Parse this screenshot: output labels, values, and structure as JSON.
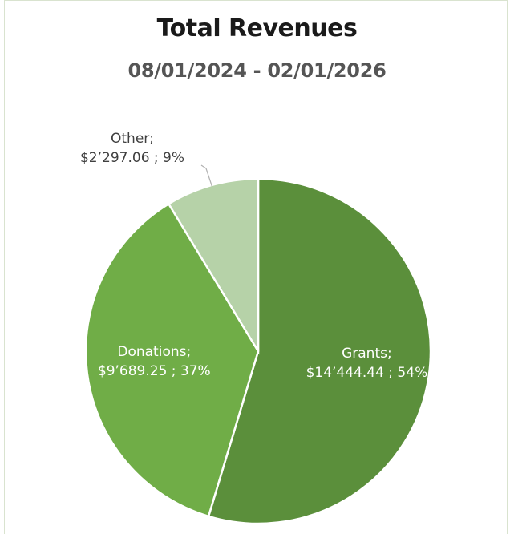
{
  "chart_data": {
    "type": "pie",
    "title": "Total Revenues",
    "subtitle": "08/01/2024 - 02/01/2026",
    "slices": [
      {
        "name": "Grants",
        "value": 14444.44,
        "value_label": "$14’444.44",
        "percent_label": "54%",
        "color": "#5b8f3b"
      },
      {
        "name": "Donations",
        "value": 9689.25,
        "value_label": "$9’689.25",
        "percent_label": "37%",
        "color": "#70ad47"
      },
      {
        "name": "Other",
        "value": 2297.06,
        "value_label": "$2’297.06",
        "percent_label": "9%",
        "color": "#b6d2a8"
      }
    ],
    "legend": "none",
    "label_format": "{name}; {value} ; {percent}"
  }
}
